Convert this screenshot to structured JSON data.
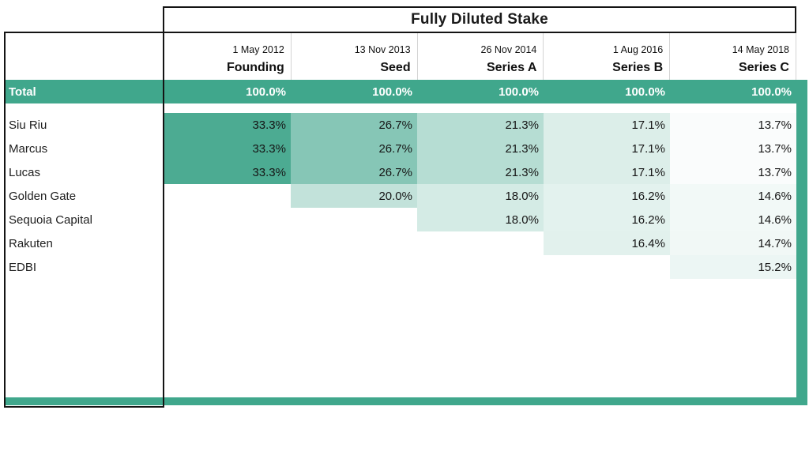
{
  "title": "Fully Diluted Stake",
  "columns": [
    {
      "date": "1 May 2012",
      "round": "Founding"
    },
    {
      "date": "13 Nov 2013",
      "round": "Seed"
    },
    {
      "date": "26 Nov 2014",
      "round": "Series A"
    },
    {
      "date": "1 Aug 2016",
      "round": "Series B"
    },
    {
      "date": "14 May 2018",
      "round": "Series C"
    }
  ],
  "total_row": {
    "label": "Total",
    "values": [
      "100.0%",
      "100.0%",
      "100.0%",
      "100.0%",
      "100.0%"
    ]
  },
  "rows": [
    {
      "name": "Siu Riu",
      "values": [
        33.3,
        26.7,
        21.3,
        17.1,
        13.7
      ]
    },
    {
      "name": "Marcus",
      "values": [
        33.3,
        26.7,
        21.3,
        17.1,
        13.7
      ]
    },
    {
      "name": "Lucas",
      "values": [
        33.3,
        26.7,
        21.3,
        17.1,
        13.7
      ]
    },
    {
      "name": "Golden Gate",
      "values": [
        null,
        20.0,
        18.0,
        16.2,
        14.6
      ]
    },
    {
      "name": "Sequoia Capital",
      "values": [
        null,
        null,
        18.0,
        16.2,
        14.6
      ]
    },
    {
      "name": "Rakuten",
      "values": [
        null,
        null,
        null,
        16.4,
        14.7
      ]
    },
    {
      "name": "EDBI",
      "values": [
        null,
        null,
        null,
        null,
        15.2
      ]
    }
  ],
  "colors": {
    "accent_teal": "#40A78C",
    "cell_scale_high": "#4CAB92",
    "cell_scale_low": "#FFFFFF",
    "header_separator": "#D4D4D4",
    "border_black": "#141414",
    "total_text": "#FFFFFF"
  }
}
